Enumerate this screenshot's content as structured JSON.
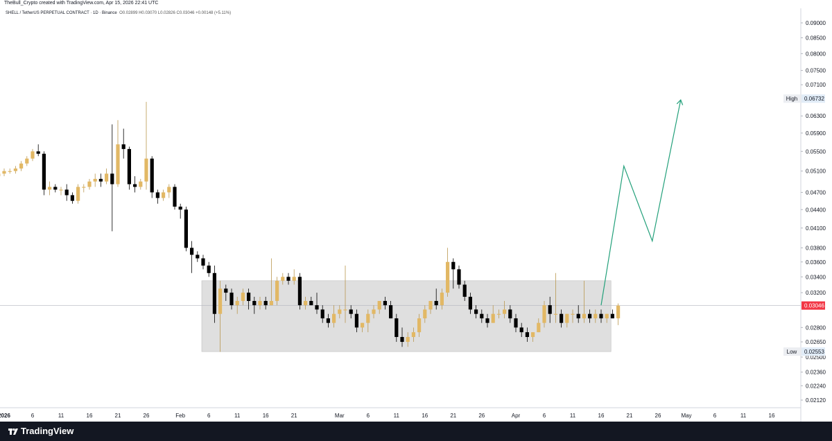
{
  "header": {
    "attribution": "TheBull_Crypto created with TradingView.com, Apr 15, 2026 22:41 UTC",
    "symbol": "SHELL / TetherUS PERPETUAL CONTRACT · 1D · Binance",
    "ohlc": "O0.02899 H0.03070 L0.02826 C0.03046 +0.00148 (+5.11%)"
  },
  "footer": {
    "brand": "TradingView"
  },
  "colors": {
    "up": "#E2B865",
    "down": "#000000",
    "projection": "#22A07A",
    "range_box": "#D9D9D9",
    "last_price": "#F23645"
  },
  "chart_data": {
    "type": "candlestick",
    "timeframe": "1D",
    "x_ticks": [
      "2026",
      "6",
      "11",
      "16",
      "21",
      "26",
      "Feb",
      "6",
      "11",
      "16",
      "21",
      "Mar",
      "6",
      "11",
      "16",
      "21",
      "26",
      "Apr",
      "6",
      "11",
      "16",
      "21",
      "26",
      "May",
      "6",
      "11",
      "16"
    ],
    "y_ticks": [
      "0.09000",
      "0.08500",
      "0.08000",
      "0.07500",
      "0.07100",
      "0.06300",
      "0.05900",
      "0.05500",
      "0.05100",
      "0.04700",
      "0.04400",
      "0.04100",
      "0.03800",
      "0.03600",
      "0.03400",
      "0.03200",
      "0.02800",
      "0.02650",
      "0.02500",
      "0.02360",
      "0.02240",
      "0.02120"
    ],
    "high": {
      "label": "High",
      "value": "0.06732"
    },
    "low": {
      "label": "Low",
      "value": "0.02553"
    },
    "last_price": "0.03046",
    "range_box": {
      "from": "2026-02-05",
      "to": "2026-04-17",
      "top": 0.0335,
      "bottom": 0.02553
    },
    "projection": [
      {
        "date": "2026-04-16",
        "price": 0.0305
      },
      {
        "date": "2026-04-20",
        "price": 0.052
      },
      {
        "date": "2026-04-25",
        "price": 0.039
      },
      {
        "date": "2026-04-30",
        "price": 0.067
      }
    ],
    "candles": [
      [
        0.05,
        0.051,
        0.0495,
        0.0505
      ],
      [
        0.0505,
        0.0515,
        0.05,
        0.051
      ],
      [
        0.051,
        0.0515,
        0.0505,
        0.051
      ],
      [
        0.051,
        0.052,
        0.0505,
        0.0515
      ],
      [
        0.0515,
        0.053,
        0.051,
        0.0525
      ],
      [
        0.0525,
        0.054,
        0.052,
        0.0535
      ],
      [
        0.0535,
        0.0555,
        0.053,
        0.055
      ],
      [
        0.055,
        0.0565,
        0.054,
        0.0545
      ],
      [
        0.0545,
        0.055,
        0.0465,
        0.0475
      ],
      [
        0.0475,
        0.049,
        0.0465,
        0.048
      ],
      [
        0.048,
        0.0485,
        0.047,
        0.0475
      ],
      [
        0.0475,
        0.048,
        0.0465,
        0.0475
      ],
      [
        0.0475,
        0.0485,
        0.0455,
        0.0465
      ],
      [
        0.0465,
        0.047,
        0.045,
        0.0455
      ],
      [
        0.0455,
        0.0485,
        0.045,
        0.048
      ],
      [
        0.048,
        0.0485,
        0.047,
        0.048
      ],
      [
        0.048,
        0.0495,
        0.0475,
        0.049
      ],
      [
        0.049,
        0.0505,
        0.048,
        0.0495
      ],
      [
        0.0495,
        0.0505,
        0.048,
        0.049
      ],
      [
        0.049,
        0.0515,
        0.0485,
        0.0505
      ],
      [
        0.0505,
        0.061,
        0.0405,
        0.0485
      ],
      [
        0.0485,
        0.062,
        0.048,
        0.0565
      ],
      [
        0.0565,
        0.06,
        0.0535,
        0.0555
      ],
      [
        0.0555,
        0.056,
        0.0475,
        0.0485
      ],
      [
        0.0485,
        0.05,
        0.047,
        0.048
      ],
      [
        0.048,
        0.0495,
        0.0475,
        0.049
      ],
      [
        0.049,
        0.0665,
        0.0475,
        0.0535
      ],
      [
        0.0535,
        0.054,
        0.046,
        0.047
      ],
      [
        0.047,
        0.0475,
        0.045,
        0.046
      ],
      [
        0.046,
        0.0475,
        0.0455,
        0.047
      ],
      [
        0.047,
        0.0485,
        0.046,
        0.048
      ],
      [
        0.048,
        0.0485,
        0.044,
        0.0445
      ],
      [
        0.0445,
        0.045,
        0.0425,
        0.044
      ],
      [
        0.044,
        0.0445,
        0.0375,
        0.038
      ],
      [
        0.038,
        0.039,
        0.0345,
        0.037
      ],
      [
        0.037,
        0.0375,
        0.036,
        0.0365
      ],
      [
        0.0365,
        0.037,
        0.035,
        0.0355
      ],
      [
        0.0355,
        0.036,
        0.034,
        0.0345
      ],
      [
        0.0345,
        0.0355,
        0.0285,
        0.0295
      ],
      [
        0.0295,
        0.0335,
        0.0255,
        0.0325
      ],
      [
        0.0325,
        0.033,
        0.031,
        0.032
      ],
      [
        0.032,
        0.0325,
        0.03,
        0.0305
      ],
      [
        0.0305,
        0.0315,
        0.0295,
        0.031
      ],
      [
        0.031,
        0.0325,
        0.0305,
        0.032
      ],
      [
        0.032,
        0.0325,
        0.03,
        0.031
      ],
      [
        0.031,
        0.0315,
        0.0295,
        0.0305
      ],
      [
        0.0305,
        0.0315,
        0.03,
        0.031
      ],
      [
        0.031,
        0.0315,
        0.03,
        0.0305
      ],
      [
        0.0305,
        0.0365,
        0.0305,
        0.031
      ],
      [
        0.031,
        0.034,
        0.0305,
        0.0335
      ],
      [
        0.0335,
        0.0345,
        0.033,
        0.034
      ],
      [
        0.034,
        0.0345,
        0.033,
        0.0335
      ],
      [
        0.0335,
        0.035,
        0.033,
        0.034
      ],
      [
        0.034,
        0.0345,
        0.03,
        0.0305
      ],
      [
        0.0305,
        0.0315,
        0.03,
        0.031
      ],
      [
        0.031,
        0.0315,
        0.0305,
        0.0305
      ],
      [
        0.0305,
        0.032,
        0.0295,
        0.03
      ],
      [
        0.03,
        0.0305,
        0.0285,
        0.029
      ],
      [
        0.029,
        0.0295,
        0.028,
        0.0285
      ],
      [
        0.0285,
        0.0305,
        0.028,
        0.0295
      ],
      [
        0.0295,
        0.0305,
        0.029,
        0.03
      ],
      [
        0.03,
        0.0355,
        0.0285,
        0.03
      ],
      [
        0.03,
        0.0305,
        0.029,
        0.0295
      ],
      [
        0.0295,
        0.03,
        0.0275,
        0.028
      ],
      [
        0.028,
        0.0285,
        0.0275,
        0.0285
      ],
      [
        0.0285,
        0.03,
        0.0275,
        0.0295
      ],
      [
        0.0295,
        0.0305,
        0.029,
        0.03
      ],
      [
        0.03,
        0.031,
        0.0295,
        0.031
      ],
      [
        0.031,
        0.0315,
        0.03,
        0.0305
      ],
      [
        0.0305,
        0.031,
        0.029,
        0.029
      ],
      [
        0.029,
        0.0295,
        0.0265,
        0.027
      ],
      [
        0.027,
        0.028,
        0.026,
        0.0265
      ],
      [
        0.0265,
        0.0275,
        0.026,
        0.027
      ],
      [
        0.027,
        0.028,
        0.0265,
        0.0275
      ],
      [
        0.0275,
        0.0295,
        0.027,
        0.029
      ],
      [
        0.029,
        0.0305,
        0.0285,
        0.03
      ],
      [
        0.03,
        0.031,
        0.0295,
        0.031
      ],
      [
        0.031,
        0.0325,
        0.03,
        0.0305
      ],
      [
        0.0305,
        0.0325,
        0.03,
        0.032
      ],
      [
        0.032,
        0.038,
        0.0315,
        0.036
      ],
      [
        0.036,
        0.0365,
        0.0325,
        0.035
      ],
      [
        0.035,
        0.0355,
        0.0325,
        0.033
      ],
      [
        0.033,
        0.0335,
        0.031,
        0.0315
      ],
      [
        0.0315,
        0.032,
        0.0295,
        0.03
      ],
      [
        0.03,
        0.0305,
        0.029,
        0.0295
      ],
      [
        0.0295,
        0.03,
        0.0285,
        0.029
      ],
      [
        0.029,
        0.0295,
        0.028,
        0.0285
      ],
      [
        0.0285,
        0.0305,
        0.0285,
        0.0295
      ],
      [
        0.0295,
        0.03,
        0.029,
        0.0295
      ],
      [
        0.0295,
        0.031,
        0.029,
        0.03
      ],
      [
        0.03,
        0.0305,
        0.0285,
        0.029
      ],
      [
        0.029,
        0.0295,
        0.0275,
        0.028
      ],
      [
        0.028,
        0.0285,
        0.027,
        0.0275
      ],
      [
        0.0275,
        0.028,
        0.0265,
        0.027
      ],
      [
        0.027,
        0.0275,
        0.0265,
        0.0275
      ],
      [
        0.0275,
        0.029,
        0.0275,
        0.0285
      ],
      [
        0.0285,
        0.031,
        0.028,
        0.0305
      ],
      [
        0.0305,
        0.0315,
        0.0285,
        0.0295
      ],
      [
        0.0295,
        0.0345,
        0.0285,
        0.0295
      ],
      [
        0.0295,
        0.03,
        0.028,
        0.0285
      ],
      [
        0.0285,
        0.0295,
        0.028,
        0.0295
      ],
      [
        0.0295,
        0.03,
        0.0285,
        0.0295
      ],
      [
        0.0295,
        0.0305,
        0.0285,
        0.029
      ],
      [
        0.029,
        0.0335,
        0.0285,
        0.0295
      ],
      [
        0.0295,
        0.03,
        0.0285,
        0.029
      ],
      [
        0.029,
        0.03,
        0.0285,
        0.0295
      ],
      [
        0.0295,
        0.03,
        0.0285,
        0.029
      ],
      [
        0.029,
        0.0295,
        0.0285,
        0.0295
      ],
      [
        0.0295,
        0.03,
        0.029,
        0.029
      ],
      [
        0.029,
        0.0307,
        0.02826,
        0.03046
      ]
    ]
  }
}
